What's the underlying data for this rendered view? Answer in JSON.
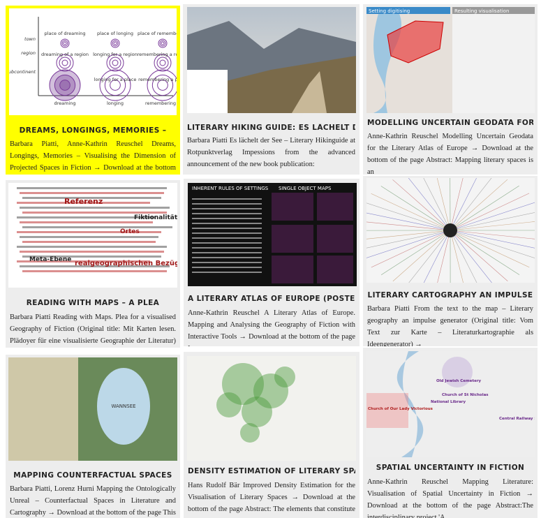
{
  "cards": [
    {
      "title": "DREAMS, LONGINGS, MEMORIES –",
      "text": "Barbara Piatti, Anne-Kathrin Reuschel Dreams, Longings, Memories – Visualising the Dimension of Projected Spaces in Fiction → Download at the bottom of the page Abstract:",
      "image_labels": [
        "town",
        "region",
        "subcontinent",
        "place of dreaming",
        "place of longing",
        "place of remembering",
        "dreaming of a region",
        "longing for a region",
        "remembering a region",
        "longing for a place",
        "remembering a place",
        "dreaming",
        "longing",
        "remembering"
      ]
    },
    {
      "title": "LITERARY HIKING GUIDE: ES LÄCHELT DER",
      "text": "Barbara Piatti Es lächelt der See – Literary Hikinguide at Rotpunktverlag Impessions from the advanced announcement of the new book publication:",
      "image_labels": []
    },
    {
      "title": "MODELLING UNCERTAIN GEODATA FOR THE",
      "text": "Anne-Kathrin Reuschel Modelling Uncertain Geodata for the Literary Atlas of Europe → Download at the bottom of the page Abstract: Mapping literary spaces is an",
      "image_labels": [
        "Setting digitising",
        "Resulting visualisation"
      ]
    },
    {
      "title": "READING WITH MAPS – A PLEA",
      "text": "Barbara Piatti Reading with Maps. Plea for a visualised Geography of Fiction (Original title: Mit Karten lesen. Plädoyer für eine visualisierte Geographie der Literatur) →",
      "image_labels": [
        "Referenz",
        "Fiktionalität",
        "Ortes",
        "Meta-Ebene",
        "realgeographischen Bezügen"
      ]
    },
    {
      "title": "A LITERARY ATLAS OF EUROPE (POSTER)",
      "text": "Anne-Kathrin Reuschel A Literary Atlas of Europe. Mapping and Analysing the Geography of Fiction with Interactive Tools → Download at the bottom of the page In",
      "image_labels": [
        "INHERENT RULES OF SETTINGS",
        "SINGLE OBJECT MAPS"
      ]
    },
    {
      "title": "LITERARY CARTOGRAPHY AN IMPULSE",
      "text": "Barbara Piatti From the text to the map – Literary geography an impulse generator (Original title: Vom Text zur Karte – Literaturkartographie als Ideengenerator) →",
      "image_labels": []
    },
    {
      "title": "MAPPING COUNTERFACTUAL SPACES",
      "text": "Barbara Piatti, Lorenz Hurni Mapping the Ontologically Unreal – Counterfactual Spaces in Literature and Cartography → Download at the bottom of the page This",
      "image_labels": [
        "WANNSEE"
      ]
    },
    {
      "title": "DENSITY ESTIMATION OF LITERARY SPACES",
      "text": "Hans Rudolf Bär Improved Density Estimation for the Visualisation of Literary Spaces → Download at the bottom of the page Abstract: The elements that constitute the",
      "image_labels": []
    },
    {
      "title": "SPATIAL UNCERTAINTY IN FICTION",
      "text": "Anne-Kathrin Reuschel Mapping Literature: Visualisation of Spatial Uncertainty in Fiction → Download at the bottom of the page Abstract:The interdisciplinary project 'A",
      "image_labels": [
        "Old Jewish Cemetery",
        "Church of St Nicholas",
        "National Library",
        "Church of Our Lady Victorious",
        "Central Railway Station"
      ]
    }
  ]
}
